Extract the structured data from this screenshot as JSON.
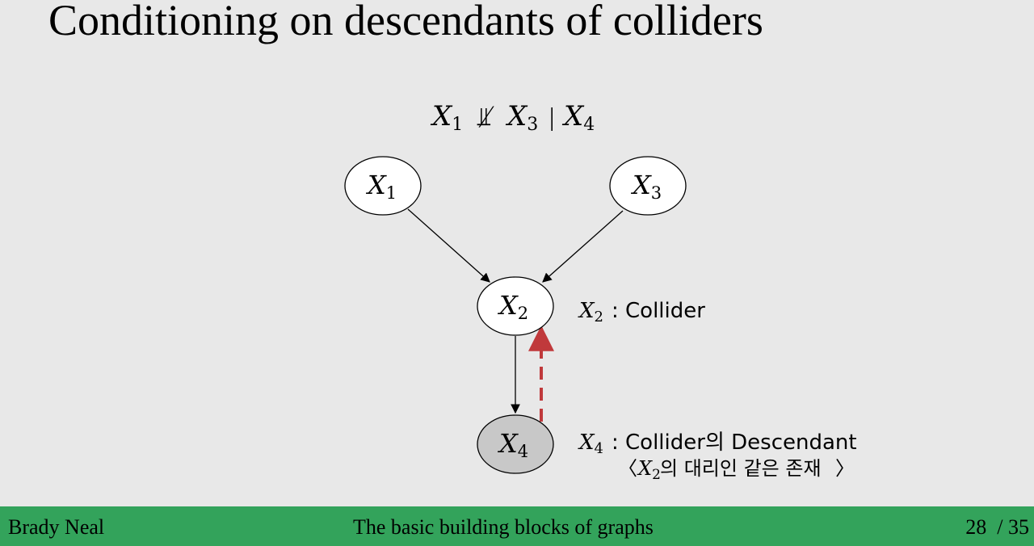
{
  "slide": {
    "title": "Conditioning on descendants of colliders"
  },
  "statement": {
    "lhs": "X",
    "lhs_sub": "1",
    "relation": "⫫̸",
    "rhs": "X",
    "rhs_sub": "3",
    "given": "|",
    "cond": "X",
    "cond_sub": "4"
  },
  "nodes": [
    {
      "id": "X1",
      "letter": "X",
      "sub": "1",
      "shaded": false
    },
    {
      "id": "X3",
      "letter": "X",
      "sub": "3",
      "shaded": false
    },
    {
      "id": "X2",
      "letter": "X",
      "sub": "2",
      "shaded": false
    },
    {
      "id": "X4",
      "letter": "X",
      "sub": "4",
      "shaded": true
    }
  ],
  "edges": [
    {
      "from": "X1",
      "to": "X2",
      "style": "solid"
    },
    {
      "from": "X3",
      "to": "X2",
      "style": "solid"
    },
    {
      "from": "X2",
      "to": "X4",
      "style": "solid"
    },
    {
      "from": "X4",
      "to": "X2",
      "style": "dashed",
      "color": "#c0393b"
    }
  ],
  "annotations": {
    "x2_letter": "X",
    "x2_sub": "2",
    "x2_text": ": Collider",
    "x4_letter": "X",
    "x4_sub": "4",
    "x4_text": ": Collider의 Descendant",
    "x4_note_open": "〈",
    "x4_note_letter": "X",
    "x4_note_sub": "2",
    "x4_note_text": "의 대리인 같은 존재",
    "x4_note_close": "〉"
  },
  "footer": {
    "author": "Brady Neal",
    "subject": "The basic building blocks of graphs",
    "page_current": "28",
    "page_sep": "/",
    "page_total": "35"
  },
  "colors": {
    "background": "#e8e8e8",
    "footer": "#33a35b",
    "shaded_node": "#c8c8c8",
    "dashed_edge": "#c0393b"
  }
}
